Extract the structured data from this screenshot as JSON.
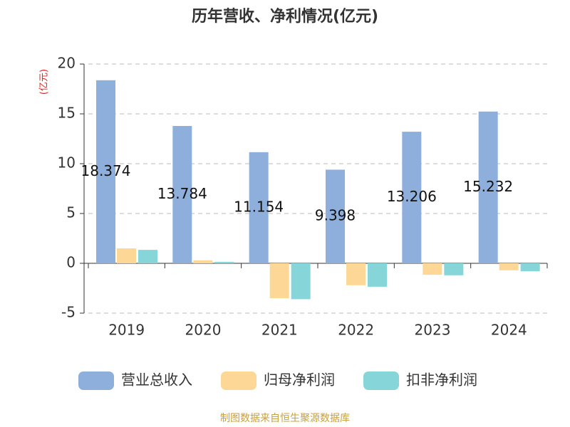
{
  "chart_data": {
    "type": "bar",
    "title": "历年营收、净利情况(亿元)",
    "y_label": "(亿元)",
    "categories": [
      "2019",
      "2020",
      "2021",
      "2022",
      "2023",
      "2024"
    ],
    "series": [
      {
        "name": "营业总收入",
        "color": "#8eaedb",
        "values": [
          18.374,
          13.784,
          11.154,
          9.398,
          13.206,
          15.232
        ]
      },
      {
        "name": "归母净利润",
        "color": "#fdd796",
        "values": [
          1.5,
          0.3,
          -3.5,
          -2.2,
          -1.15,
          -0.7
        ]
      },
      {
        "name": "扣非净利润",
        "color": "#86d5d8",
        "values": [
          1.35,
          0.15,
          -3.6,
          -2.35,
          -1.2,
          -0.8
        ]
      }
    ],
    "ylim": [
      -5,
      20
    ],
    "yticks": [
      -5,
      0,
      5,
      10,
      15,
      20
    ],
    "grid": true,
    "source": "制图数据来自恒生聚源数据库"
  }
}
